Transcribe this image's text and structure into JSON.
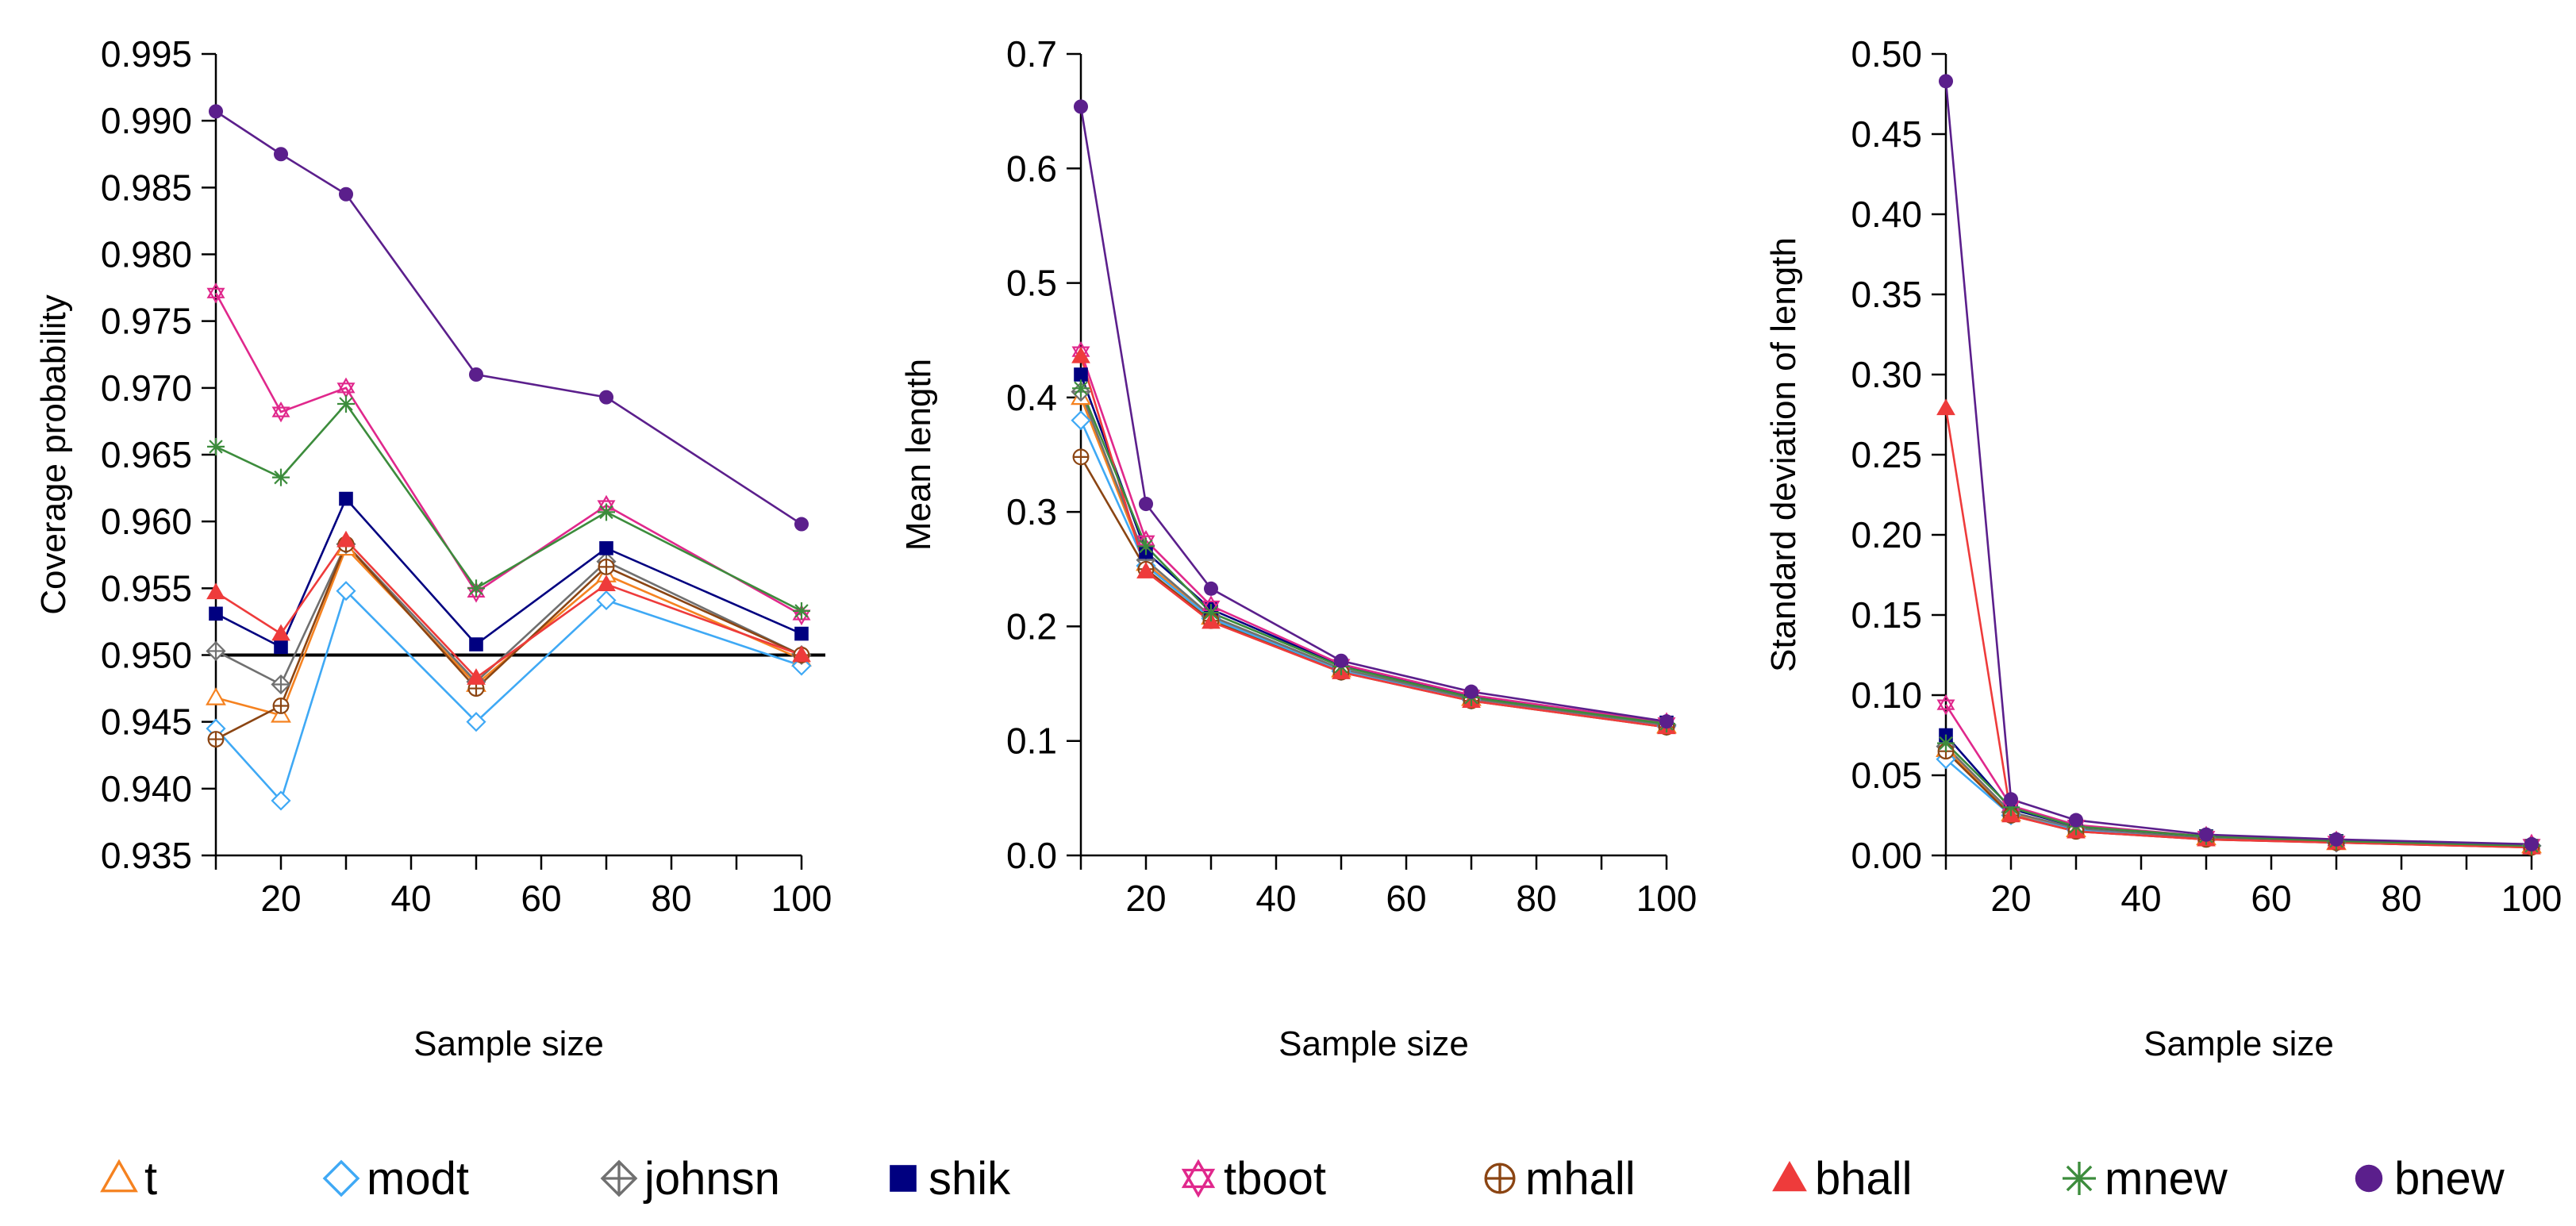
{
  "chart_data": [
    {
      "type": "line",
      "id": "coverage",
      "title": "",
      "xlabel": "Sample size",
      "ylabel": "Coverage probability",
      "x": [
        10,
        20,
        30,
        50,
        70,
        100
      ],
      "xlim": [
        10,
        100
      ],
      "xticks": [
        20,
        40,
        60,
        80,
        100
      ],
      "ylim": [
        0.935,
        0.995
      ],
      "yticks": [
        "0.935",
        "0.940",
        "0.945",
        "0.950",
        "0.955",
        "0.960",
        "0.965",
        "0.970",
        "0.975",
        "0.980",
        "0.985",
        "0.990",
        "0.995"
      ],
      "reference_line": 0.95,
      "series": [
        {
          "name": "t",
          "values": [
            0.9468,
            0.9455,
            0.958,
            0.9478,
            0.956,
            0.9497
          ]
        },
        {
          "name": "modt",
          "values": [
            0.9445,
            0.9391,
            0.9548,
            0.945,
            0.9541,
            0.9492
          ]
        },
        {
          "name": "johnsn",
          "values": [
            0.9503,
            0.9478,
            0.9583,
            0.948,
            0.957,
            0.95
          ]
        },
        {
          "name": "shik",
          "values": [
            0.9531,
            0.9506,
            0.9617,
            0.9508,
            0.958,
            0.9516
          ]
        },
        {
          "name": "tboot",
          "values": [
            0.9771,
            0.9682,
            0.97,
            0.9547,
            0.9612,
            0.953
          ]
        },
        {
          "name": "mhall",
          "values": [
            0.9437,
            0.9462,
            0.9583,
            0.9475,
            0.9566,
            0.95
          ]
        },
        {
          "name": "bhall",
          "values": [
            0.9547,
            0.9516,
            0.9586,
            0.9483,
            0.9553,
            0.95
          ]
        },
        {
          "name": "mnew",
          "values": [
            0.9656,
            0.9633,
            0.9688,
            0.955,
            0.9607,
            0.9533
          ]
        },
        {
          "name": "bnew",
          "values": [
            0.9907,
            0.9875,
            0.9845,
            0.971,
            0.9693,
            0.9598
          ]
        }
      ]
    },
    {
      "type": "line",
      "id": "mean-length",
      "title": "",
      "xlabel": "Sample size",
      "ylabel": "Mean length",
      "x": [
        10,
        20,
        30,
        50,
        70,
        100
      ],
      "xlim": [
        10,
        100
      ],
      "xticks": [
        20,
        40,
        60,
        80,
        100
      ],
      "ylim": [
        0.0,
        0.7
      ],
      "yticks": [
        "0.0",
        "0.1",
        "0.2",
        "0.3",
        "0.4",
        "0.5",
        "0.6",
        "0.7"
      ],
      "series": [
        {
          "name": "t",
          "values": [
            0.4,
            0.255,
            0.208,
            0.162,
            0.137,
            0.113
          ]
        },
        {
          "name": "modt",
          "values": [
            0.38,
            0.253,
            0.207,
            0.161,
            0.136,
            0.113
          ]
        },
        {
          "name": "johnsn",
          "values": [
            0.405,
            0.258,
            0.209,
            0.163,
            0.137,
            0.114
          ]
        },
        {
          "name": "shik",
          "values": [
            0.42,
            0.265,
            0.215,
            0.166,
            0.139,
            0.116
          ]
        },
        {
          "name": "tboot",
          "values": [
            0.44,
            0.275,
            0.218,
            0.167,
            0.14,
            0.116
          ]
        },
        {
          "name": "mhall",
          "values": [
            0.348,
            0.25,
            0.205,
            0.16,
            0.135,
            0.112
          ]
        },
        {
          "name": "bhall",
          "values": [
            0.436,
            0.248,
            0.204,
            0.16,
            0.135,
            0.112
          ]
        },
        {
          "name": "mnew",
          "values": [
            0.408,
            0.27,
            0.212,
            0.165,
            0.138,
            0.115
          ]
        },
        {
          "name": "bnew",
          "values": [
            0.654,
            0.307,
            0.233,
            0.17,
            0.143,
            0.117
          ]
        }
      ]
    },
    {
      "type": "line",
      "id": "sd-length",
      "title": "",
      "xlabel": "Sample size",
      "ylabel": "Standard deviation of length",
      "x": [
        10,
        20,
        30,
        50,
        70,
        100
      ],
      "xlim": [
        10,
        100
      ],
      "xticks": [
        20,
        40,
        60,
        80,
        100
      ],
      "ylim": [
        0.0,
        0.5
      ],
      "yticks": [
        "0.00",
        "0.05",
        "0.10",
        "0.15",
        "0.20",
        "0.25",
        "0.30",
        "0.35",
        "0.40",
        "0.45",
        "0.50"
      ],
      "series": [
        {
          "name": "t",
          "values": [
            0.066,
            0.026,
            0.016,
            0.011,
            0.008,
            0.006
          ]
        },
        {
          "name": "modt",
          "values": [
            0.06,
            0.025,
            0.016,
            0.011,
            0.008,
            0.006
          ]
        },
        {
          "name": "johnsn",
          "values": [
            0.068,
            0.027,
            0.017,
            0.011,
            0.008,
            0.006
          ]
        },
        {
          "name": "shik",
          "values": [
            0.075,
            0.029,
            0.018,
            0.012,
            0.009,
            0.006
          ]
        },
        {
          "name": "tboot",
          "values": [
            0.094,
            0.031,
            0.019,
            0.012,
            0.009,
            0.007
          ]
        },
        {
          "name": "mhall",
          "values": [
            0.065,
            0.025,
            0.015,
            0.01,
            0.008,
            0.005
          ]
        },
        {
          "name": "bhall",
          "values": [
            0.279,
            0.025,
            0.015,
            0.01,
            0.008,
            0.005
          ]
        },
        {
          "name": "mnew",
          "values": [
            0.07,
            0.03,
            0.018,
            0.012,
            0.009,
            0.006
          ]
        },
        {
          "name": "bnew",
          "values": [
            0.483,
            0.035,
            0.022,
            0.013,
            0.01,
            0.007
          ]
        }
      ]
    }
  ],
  "legend": [
    {
      "name": "t",
      "marker": "triangle-open",
      "color": "#F58220"
    },
    {
      "name": "modt",
      "marker": "diamond-open",
      "color": "#3FA9F5"
    },
    {
      "name": "johnsn",
      "marker": "diamond-plus",
      "color": "#707070"
    },
    {
      "name": "shik",
      "marker": "square-filled",
      "color": "#000080"
    },
    {
      "name": "tboot",
      "marker": "star-of-david",
      "color": "#E0288C"
    },
    {
      "name": "mhall",
      "marker": "circle-plus",
      "color": "#8B4513"
    },
    {
      "name": "bhall",
      "marker": "triangle-filled",
      "color": "#EE3B3B"
    },
    {
      "name": "mnew",
      "marker": "asterisk",
      "color": "#3C8C3C"
    },
    {
      "name": "bnew",
      "marker": "circle-filled",
      "color": "#5B1F8C"
    }
  ]
}
